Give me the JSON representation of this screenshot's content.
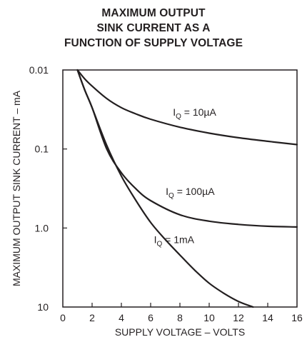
{
  "chart_data": {
    "type": "line",
    "title": [
      "MAXIMUM OUTPUT",
      "SINK CURRENT AS A",
      "FUNCTION OF SUPPLY VOLTAGE"
    ],
    "xlabel": "SUPPLY VOLTAGE – VOLTS",
    "ylabel": "MAXIMUM OUTPUT SINK CURRENT – mA",
    "xlim": [
      0,
      16
    ],
    "ylim": [
      0.01,
      10
    ],
    "y_scale": "log",
    "y_inverted": true,
    "grid": false,
    "x_ticks": [
      "0",
      "2",
      "4",
      "6",
      "8",
      "10",
      "12",
      "14",
      "16"
    ],
    "y_ticks": [
      "0.01",
      "0.1",
      "1.0",
      "10"
    ],
    "series": [
      {
        "name": "IQ = 10µA",
        "label_main": "I",
        "label_sub": "Q",
        "label_rest": " = 10µA",
        "x": [
          1.0,
          1.5,
          2.0,
          3.0,
          4.0,
          5.0,
          6.0,
          8.0,
          10.0,
          12.0,
          14.0,
          16.0
        ],
        "y": [
          0.01,
          0.013,
          0.016,
          0.023,
          0.03,
          0.036,
          0.042,
          0.053,
          0.063,
          0.072,
          0.08,
          0.088
        ]
      },
      {
        "name": "IQ = 100µA",
        "label_main": "I",
        "label_sub": "Q",
        "label_rest": " = 100µA",
        "x": [
          1.0,
          1.5,
          2.0,
          3.0,
          4.0,
          5.0,
          6.0,
          8.0,
          10.0,
          12.0,
          14.0,
          16.0
        ],
        "y": [
          0.01,
          0.018,
          0.03,
          0.1,
          0.2,
          0.32,
          0.45,
          0.68,
          0.82,
          0.9,
          0.95,
          0.97
        ]
      },
      {
        "name": "IQ = 1mA",
        "label_main": "I",
        "label_sub": "Q",
        "label_rest": " = 1mA",
        "x": [
          1.0,
          1.5,
          2.0,
          3.0,
          4.0,
          5.0,
          6.0,
          7.0,
          8.0,
          9.0,
          10.0,
          11.0,
          12.0,
          13.0
        ],
        "y": [
          0.01,
          0.018,
          0.03,
          0.09,
          0.22,
          0.45,
          0.85,
          1.4,
          2.2,
          3.4,
          5.0,
          6.7,
          8.5,
          10.0
        ]
      }
    ]
  }
}
